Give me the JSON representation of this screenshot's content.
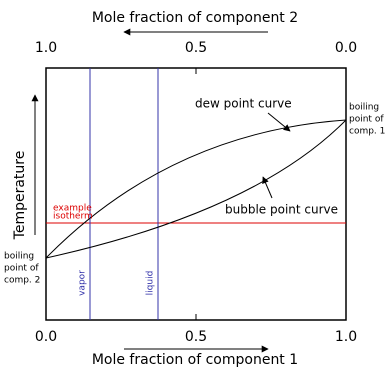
{
  "top_axis": {
    "title": "Mole fraction of component 2",
    "ticks": [
      "1.0",
      "0.5",
      "0.0"
    ]
  },
  "bottom_axis": {
    "title": "Mole fraction of component 1",
    "ticks": [
      "0.0",
      "0.5",
      "1.0"
    ]
  },
  "left_axis": {
    "title": "Temperature"
  },
  "labels": {
    "dew": "dew point curve",
    "bubble": "bubble point curve",
    "isotherm": [
      "example",
      "isotherm"
    ],
    "vapor": "vapor",
    "liquid": "liquid",
    "boiling_2": [
      "boiling",
      "point of",
      "comp. 2"
    ],
    "boiling_1": [
      "boiling",
      "point of",
      "comp. 1"
    ]
  }
}
